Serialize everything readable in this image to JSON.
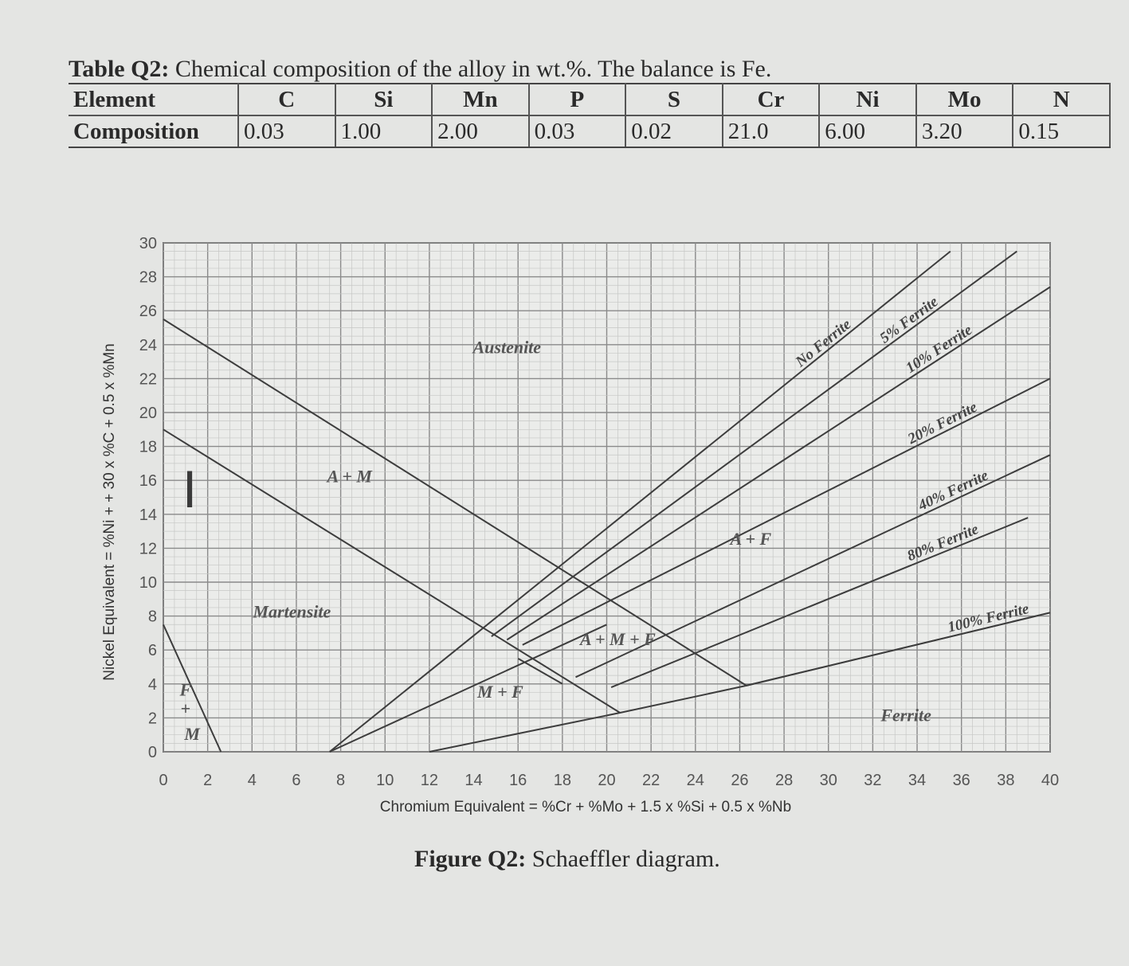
{
  "table": {
    "caption_label": "Table Q2:",
    "caption_text": "Chemical composition of the alloy in wt.%. The balance is Fe.",
    "header_label": "Element",
    "row_label": "Composition",
    "columns": [
      {
        "element": "C",
        "value": "0.03"
      },
      {
        "element": "Si",
        "value": "1.00"
      },
      {
        "element": "Mn",
        "value": "2.00"
      },
      {
        "element": "P",
        "value": "0.03"
      },
      {
        "element": "S",
        "value": "0.02"
      },
      {
        "element": "Cr",
        "value": "21.0"
      },
      {
        "element": "Ni",
        "value": "6.00"
      },
      {
        "element": "Mo",
        "value": "3.20"
      },
      {
        "element": "N",
        "value": "0.15"
      }
    ]
  },
  "figure": {
    "caption_label": "Figure Q2:",
    "caption_text": "Schaeffler diagram."
  },
  "chart_data": {
    "type": "line",
    "xlabel": "Chromium Equivalent = %Cr + %Mo + 1.5 x %Si + 0.5 x %Nb",
    "ylabel": "Nickel Equivalent = %Ni + + 30 x %C + 0.5 x %Mn",
    "xlim": [
      0,
      40
    ],
    "ylim": [
      0,
      30
    ],
    "xticks": [
      0,
      2,
      4,
      6,
      8,
      10,
      12,
      14,
      16,
      18,
      20,
      22,
      24,
      26,
      28,
      30,
      32,
      34,
      36,
      38,
      40
    ],
    "yticks": [
      0,
      2,
      4,
      6,
      8,
      10,
      12,
      14,
      16,
      18,
      20,
      22,
      24,
      26,
      28,
      30
    ],
    "grid": true,
    "boundaries": [
      {
        "name": "austenite-martensite upper",
        "points": [
          [
            0,
            25.5
          ],
          [
            26.3,
            3.9
          ]
        ]
      },
      {
        "name": "austenite-martensite lower",
        "points": [
          [
            0,
            19
          ],
          [
            20.6,
            2.3
          ]
        ]
      },
      {
        "name": "F+M corner",
        "points": [
          [
            0,
            7.5
          ],
          [
            2.6,
            0
          ]
        ]
      },
      {
        "name": "M+F lower boundary",
        "points": [
          [
            12,
            0
          ],
          [
            20.6,
            2.3
          ],
          [
            26.3,
            3.9
          ],
          [
            40,
            8.2
          ]
        ]
      },
      {
        "name": "A+M+F edge",
        "points": [
          [
            7.5,
            0
          ],
          [
            20,
            7.5
          ]
        ]
      },
      {
        "name": "A+M+F edge 2",
        "points": [
          [
            16,
            5.5
          ],
          [
            18,
            4
          ]
        ]
      }
    ],
    "series": [
      {
        "name": "No Ferrite",
        "points": [
          [
            7.5,
            0
          ],
          [
            35.5,
            29.5
          ]
        ]
      },
      {
        "name": "5% Ferrite",
        "points": [
          [
            14.8,
            6.8
          ],
          [
            38.5,
            29.5
          ]
        ]
      },
      {
        "name": "10% Ferrite",
        "points": [
          [
            15.5,
            6.6
          ],
          [
            40,
            27.4
          ]
        ]
      },
      {
        "name": "20% Ferrite",
        "points": [
          [
            16.2,
            6.3
          ],
          [
            40,
            22
          ]
        ]
      },
      {
        "name": "40% Ferrite",
        "points": [
          [
            18.6,
            4.4
          ],
          [
            40,
            17.5
          ]
        ]
      },
      {
        "name": "80% Ferrite",
        "points": [
          [
            20.2,
            3.8
          ],
          [
            39,
            13.8
          ]
        ]
      },
      {
        "name": "100% Ferrite",
        "points": [
          [
            26.3,
            3.9
          ],
          [
            40,
            8.2
          ]
        ]
      }
    ],
    "region_labels": [
      {
        "text": "Austenite",
        "x": 15.5,
        "y": 23.5
      },
      {
        "text": "A + M",
        "x": 8.4,
        "y": 15.9
      },
      {
        "text": "Martensite",
        "x": 5.8,
        "y": 7.9
      },
      {
        "text": "A + F",
        "x": 26.5,
        "y": 12.2
      },
      {
        "text": "A + M + F",
        "x": 20.5,
        "y": 6.3
      },
      {
        "text": "M + F",
        "x": 15.2,
        "y": 3.2
      },
      {
        "text": "Ferrite",
        "x": 33.5,
        "y": 1.8
      },
      {
        "text": "F",
        "x": 1.0,
        "y": 3.3
      },
      {
        "text": "+",
        "x": 1.0,
        "y": 2.2
      },
      {
        "text": "M",
        "x": 1.3,
        "y": 0.7
      }
    ],
    "annotation": "I"
  }
}
